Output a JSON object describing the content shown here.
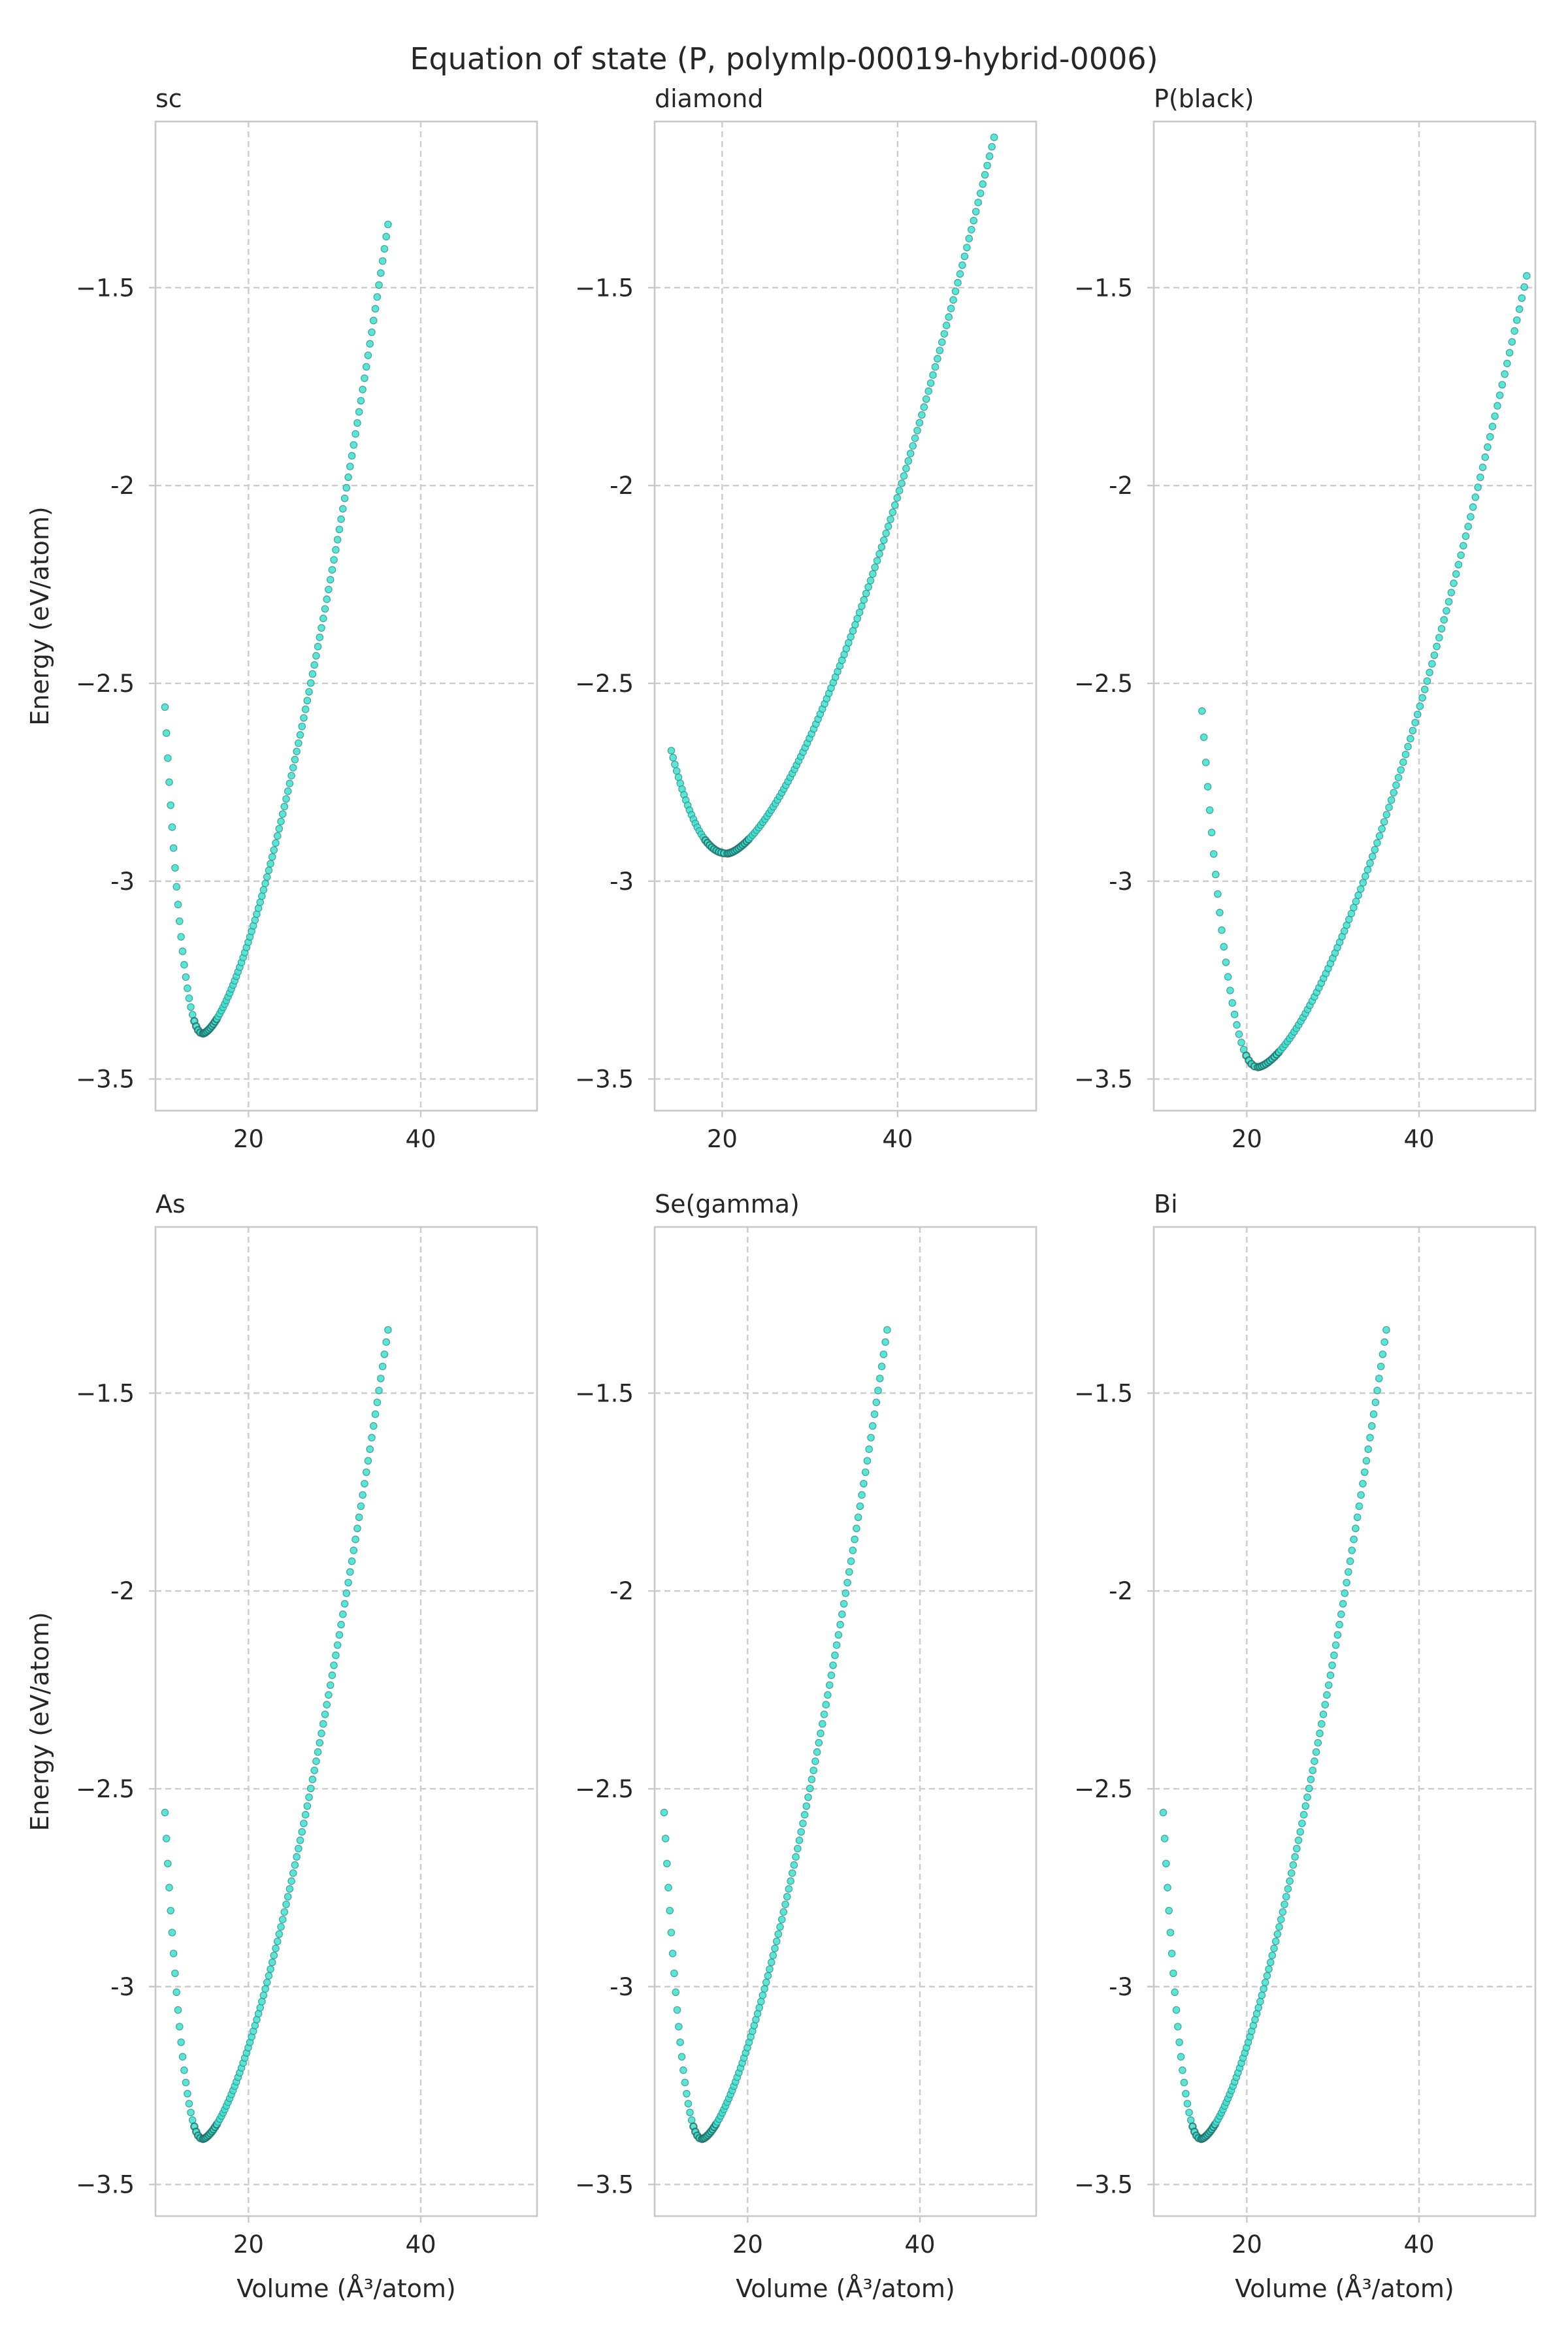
{
  "figure": {
    "title": "Equation of state (P, polymlp-00019-hybrid-0006)",
    "xlabel": "Volume (Å³/atom)",
    "ylabel": "Energy (eV/atom)"
  },
  "colors": {
    "marker_fill": "#40e0d0",
    "marker_edge": "#2a8f87",
    "grid": "#cccccc",
    "axes": "#c8c8c8",
    "text": "#262626"
  },
  "chart_data": [
    {
      "type": "scatter",
      "title": "sc",
      "xlim": [
        9.2,
        53.5
      ],
      "ylim": [
        -3.58,
        -1.08
      ],
      "xticks": [
        20,
        40
      ],
      "yticks": [
        -3.5,
        -3.0,
        -2.5,
        -2.0,
        -1.5
      ],
      "grid": true,
      "curve": {
        "v0": 14.7,
        "e0": -3.385,
        "v_min": 10.3,
        "v_max": 36.2,
        "e_at_vmin": -2.56,
        "e_at_vmax": -1.34,
        "n_points": 130
      }
    },
    {
      "type": "scatter",
      "title": "diamond",
      "xlim": [
        12.3,
        55.8
      ],
      "ylim": [
        -3.58,
        -1.08
      ],
      "xticks": [
        20,
        40
      ],
      "yticks": [
        -3.5,
        -3.0,
        -2.5,
        -2.0,
        -1.5
      ],
      "grid": true,
      "curve": {
        "v0": 20.6,
        "e0": -2.93,
        "v_min": 14.2,
        "v_max": 51.0,
        "e_at_vmin": -2.67,
        "e_at_vmax": -1.12,
        "n_points": 150
      }
    },
    {
      "type": "scatter",
      "title": "P(black)",
      "xlim": [
        9.2,
        53.5
      ],
      "ylim": [
        -3.58,
        -1.08
      ],
      "xticks": [
        20,
        40
      ],
      "yticks": [
        -3.5,
        -3.0,
        -2.5,
        -2.0,
        -1.5
      ],
      "grid": true,
      "curve": {
        "v0": 21.3,
        "e0": -3.47,
        "v_min": 14.8,
        "v_max": 52.5,
        "e_at_vmin": -2.57,
        "e_at_vmax": -1.47,
        "n_points": 140
      }
    },
    {
      "type": "scatter",
      "title": "As",
      "xlim": [
        9.2,
        53.5
      ],
      "ylim": [
        -3.58,
        -1.08
      ],
      "xticks": [
        20,
        40
      ],
      "yticks": [
        -3.5,
        -3.0,
        -2.5,
        -2.0,
        -1.5
      ],
      "grid": true,
      "curve": {
        "v0": 14.7,
        "e0": -3.385,
        "v_min": 10.3,
        "v_max": 36.2,
        "e_at_vmin": -2.56,
        "e_at_vmax": -1.34,
        "n_points": 130
      }
    },
    {
      "type": "scatter",
      "title": "Se(gamma)",
      "xlim": [
        9.2,
        53.5
      ],
      "ylim": [
        -3.58,
        -1.08
      ],
      "xticks": [
        20,
        40
      ],
      "yticks": [
        -3.5,
        -3.0,
        -2.5,
        -2.0,
        -1.5
      ],
      "grid": true,
      "curve": {
        "v0": 14.7,
        "e0": -3.385,
        "v_min": 10.3,
        "v_max": 36.2,
        "e_at_vmin": -2.56,
        "e_at_vmax": -1.34,
        "n_points": 130
      }
    },
    {
      "type": "scatter",
      "title": "Bi",
      "xlim": [
        9.2,
        53.5
      ],
      "ylim": [
        -3.58,
        -1.08
      ],
      "xticks": [
        20,
        40
      ],
      "yticks": [
        -3.5,
        -3.0,
        -2.5,
        -2.0,
        -1.5
      ],
      "grid": true,
      "curve": {
        "v0": 14.7,
        "e0": -3.385,
        "v_min": 10.3,
        "v_max": 36.2,
        "e_at_vmin": -2.56,
        "e_at_vmax": -1.34,
        "n_points": 130
      }
    }
  ]
}
